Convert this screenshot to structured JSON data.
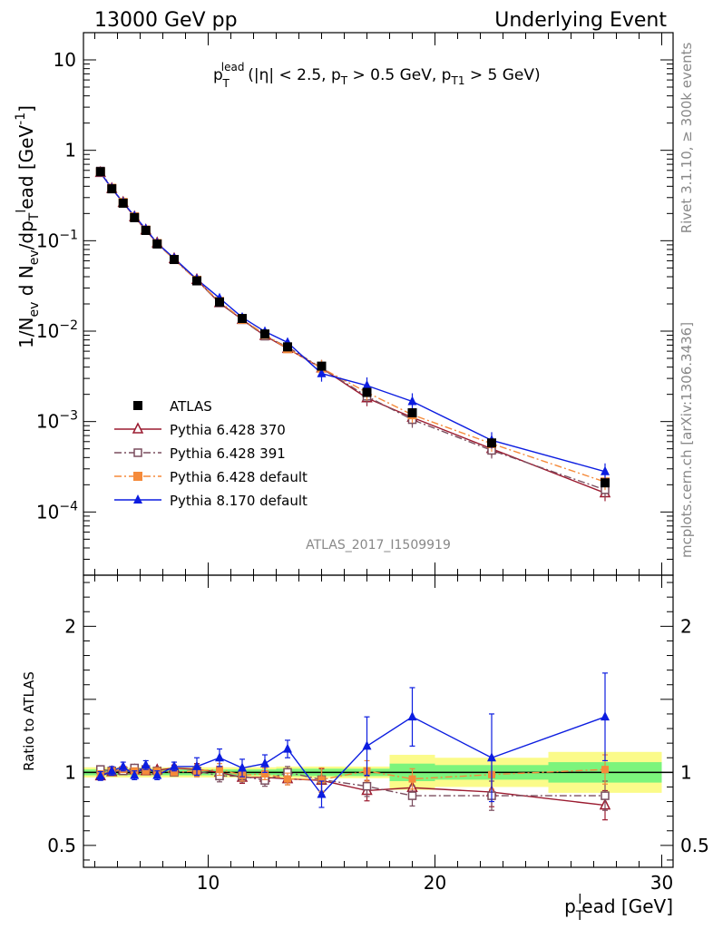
{
  "header": {
    "left": "13000 GeV pp",
    "right": "Underlying Event"
  },
  "side_labels": {
    "rivet": "Rivet 3.1.10, ≥ 300k events",
    "mcplots": "mcplots.cern.ch [arXiv:1306.3436]"
  },
  "analysis_id": "ATLAS_2017_I1509919",
  "annotation": {
    "p": "p",
    "sup": "lead",
    "sub": "T",
    "rest": " (|η| < 2.5, p",
    "sub2": "T",
    "rest2": " > 0.5 GeV, p",
    "sub3": "T1",
    "rest3": " > 5 GeV)"
  },
  "axes": {
    "top_ylabel": "1/N_ev d N_ev/dp_T^l ead [GeV^-1]",
    "bottom_ylabel": "Ratio to ATLAS",
    "xlabel": "p_T^l ead [GeV]"
  },
  "colors": {
    "atlas": "#000000",
    "p370": "#9b1b30",
    "p391": "#7a4d5e",
    "pdef": "#f58a3a",
    "p8": "#0c1de0",
    "band_inner": "#7cf47c",
    "band_outer": "#fbfb8a"
  },
  "chart_data": [
    {
      "type": "line",
      "panel": "main",
      "yscale": "log",
      "xlim": [
        4.5,
        30.5
      ],
      "ylim": [
        2e-05,
        20
      ],
      "x_ticks": [
        "10",
        "20",
        "30"
      ],
      "y_ticks": [
        "10^-4",
        "10^-3",
        "10^-2",
        "10^-1",
        "1",
        "10"
      ],
      "x": [
        5.25,
        5.75,
        6.25,
        6.75,
        7.25,
        7.75,
        8.5,
        9.5,
        10.5,
        11.5,
        12.5,
        13.5,
        15.0,
        17.0,
        19.0,
        22.5,
        27.5
      ],
      "series": [
        {
          "name": "ATLAS",
          "marker": "filled-square",
          "values": [
            0.58,
            0.375,
            0.26,
            0.18,
            0.13,
            0.092,
            0.062,
            0.036,
            0.021,
            0.0138,
            0.0093,
            0.0067,
            0.0041,
            0.0021,
            0.00125,
            0.00058,
            0.00021
          ]
        },
        {
          "name": "Pythia 6.428 370",
          "marker": "open-triangle",
          "values": [
            0.565,
            0.376,
            0.264,
            0.183,
            0.131,
            0.094,
            0.063,
            0.037,
            0.0205,
            0.0134,
            0.0089,
            0.0064,
            0.0039,
            0.00182,
            0.00111,
            0.0005,
            0.000162
          ]
        },
        {
          "name": "Pythia 6.428 391",
          "marker": "open-square",
          "values": [
            0.59,
            0.38,
            0.263,
            0.185,
            0.132,
            0.093,
            0.062,
            0.0365,
            0.0205,
            0.0134,
            0.0088,
            0.0067,
            0.0039,
            0.0019,
            0.00105,
            0.00048,
            0.000176
          ]
        },
        {
          "name": "Pythia 6.428 default",
          "marker": "filled-square",
          "values": [
            0.575,
            0.38,
            0.265,
            0.183,
            0.131,
            0.093,
            0.062,
            0.0365,
            0.0213,
            0.0135,
            0.0092,
            0.0064,
            0.0039,
            0.0021,
            0.00119,
            0.00057,
            0.000215
          ]
        },
        {
          "name": "Pythia 8.170 default",
          "marker": "filled-triangle",
          "values": [
            0.565,
            0.38,
            0.265,
            0.187,
            0.135,
            0.094,
            0.064,
            0.0375,
            0.0232,
            0.0142,
            0.0099,
            0.0075,
            0.0034,
            0.0025,
            0.00167,
            0.00062,
            0.00028
          ]
        }
      ],
      "legend_position": "bottom-left"
    },
    {
      "type": "line",
      "panel": "ratio",
      "xlim": [
        4.5,
        30.5
      ],
      "ylim": [
        0.35,
        2.35
      ],
      "y_ticks": [
        "0.5",
        "1",
        "2"
      ],
      "x": [
        5.25,
        5.75,
        6.25,
        6.75,
        7.25,
        7.75,
        8.5,
        9.5,
        10.5,
        11.5,
        12.5,
        13.5,
        15.0,
        17.0,
        19.0,
        22.5,
        27.5
      ],
      "series": [
        {
          "name": "Pythia 6.428 370",
          "values": [
            0.975,
            1.003,
            1.015,
            1.015,
            1.01,
            1.015,
            1.03,
            1.02,
            1.0,
            0.965,
            0.965,
            0.955,
            0.945,
            0.875,
            0.895,
            0.865,
            0.775
          ]
        },
        {
          "name": "Pythia 6.428 391",
          "values": [
            1.02,
            1.01,
            1.01,
            1.03,
            1.02,
            1.01,
            1.0,
            1.01,
            0.975,
            0.975,
            0.945,
            1.0,
            0.95,
            0.905,
            0.84,
            0.84,
            0.84
          ]
        },
        {
          "name": "Pythia 6.428 default",
          "values": [
            0.99,
            1.01,
            1.02,
            1.01,
            1.01,
            1.01,
            1.0,
            1.01,
            1.02,
            0.98,
            0.99,
            0.955,
            0.95,
            1.01,
            0.955,
            0.985,
            1.02
          ]
        },
        {
          "name": "Pythia 8.170 default",
          "values": [
            0.975,
            1.01,
            1.04,
            0.98,
            1.05,
            0.98,
            1.04,
            1.04,
            1.1,
            1.03,
            1.06,
            1.16,
            0.85,
            1.18,
            1.38,
            1.1,
            1.38
          ]
        }
      ],
      "band": {
        "edges": [
          4.5,
          5.5,
          6.0,
          6.5,
          7.0,
          7.5,
          8.0,
          9.0,
          10.0,
          11.0,
          12.0,
          13.0,
          14.0,
          16.0,
          18.0,
          20.0,
          25.0,
          30.0
        ],
        "inner": [
          0.02,
          0.02,
          0.02,
          0.02,
          0.02,
          0.02,
          0.02,
          0.02,
          0.02,
          0.02,
          0.02,
          0.025,
          0.025,
          0.025,
          0.06,
          0.05,
          0.07
        ],
        "outer": [
          0.035,
          0.035,
          0.035,
          0.035,
          0.035,
          0.035,
          0.035,
          0.035,
          0.035,
          0.035,
          0.035,
          0.04,
          0.04,
          0.04,
          0.12,
          0.1,
          0.14
        ]
      }
    }
  ]
}
